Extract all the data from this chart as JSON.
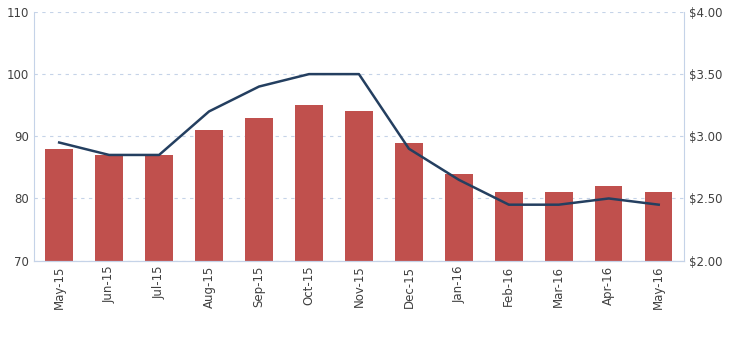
{
  "categories": [
    "May-15",
    "Jun-15",
    "Jul-15",
    "Aug-15",
    "Sep-15",
    "Oct-15",
    "Nov-15",
    "Dec-15",
    "Jan-16",
    "Feb-16",
    "Mar-16",
    "Apr-16",
    "May-16"
  ],
  "bar_values": [
    88,
    87,
    87,
    91,
    93,
    95,
    94,
    89,
    84,
    81,
    81,
    82,
    81
  ],
  "line_values": [
    89,
    87,
    87,
    94,
    98,
    100,
    100,
    88,
    83,
    79,
    79,
    80,
    79
  ],
  "bar_color": "#c0504d",
  "line_color": "#243f60",
  "ylim": [
    70,
    110
  ],
  "yticks": [
    70,
    80,
    90,
    100,
    110
  ],
  "right_yticks_labels": [
    "$2.00",
    "$2.50",
    "$3.00",
    "$3.50",
    "$4.00"
  ],
  "right_ylim": [
    2.0,
    4.0
  ],
  "right_yticks": [
    2.0,
    2.5,
    3.0,
    3.5,
    4.0
  ],
  "grid_color": "#c5d3e8",
  "background_color": "#ffffff",
  "axis_label_color": "#404040",
  "tick_label_fontsize": 8.5,
  "legend_fontsize": 9,
  "bar_bottom": 70
}
